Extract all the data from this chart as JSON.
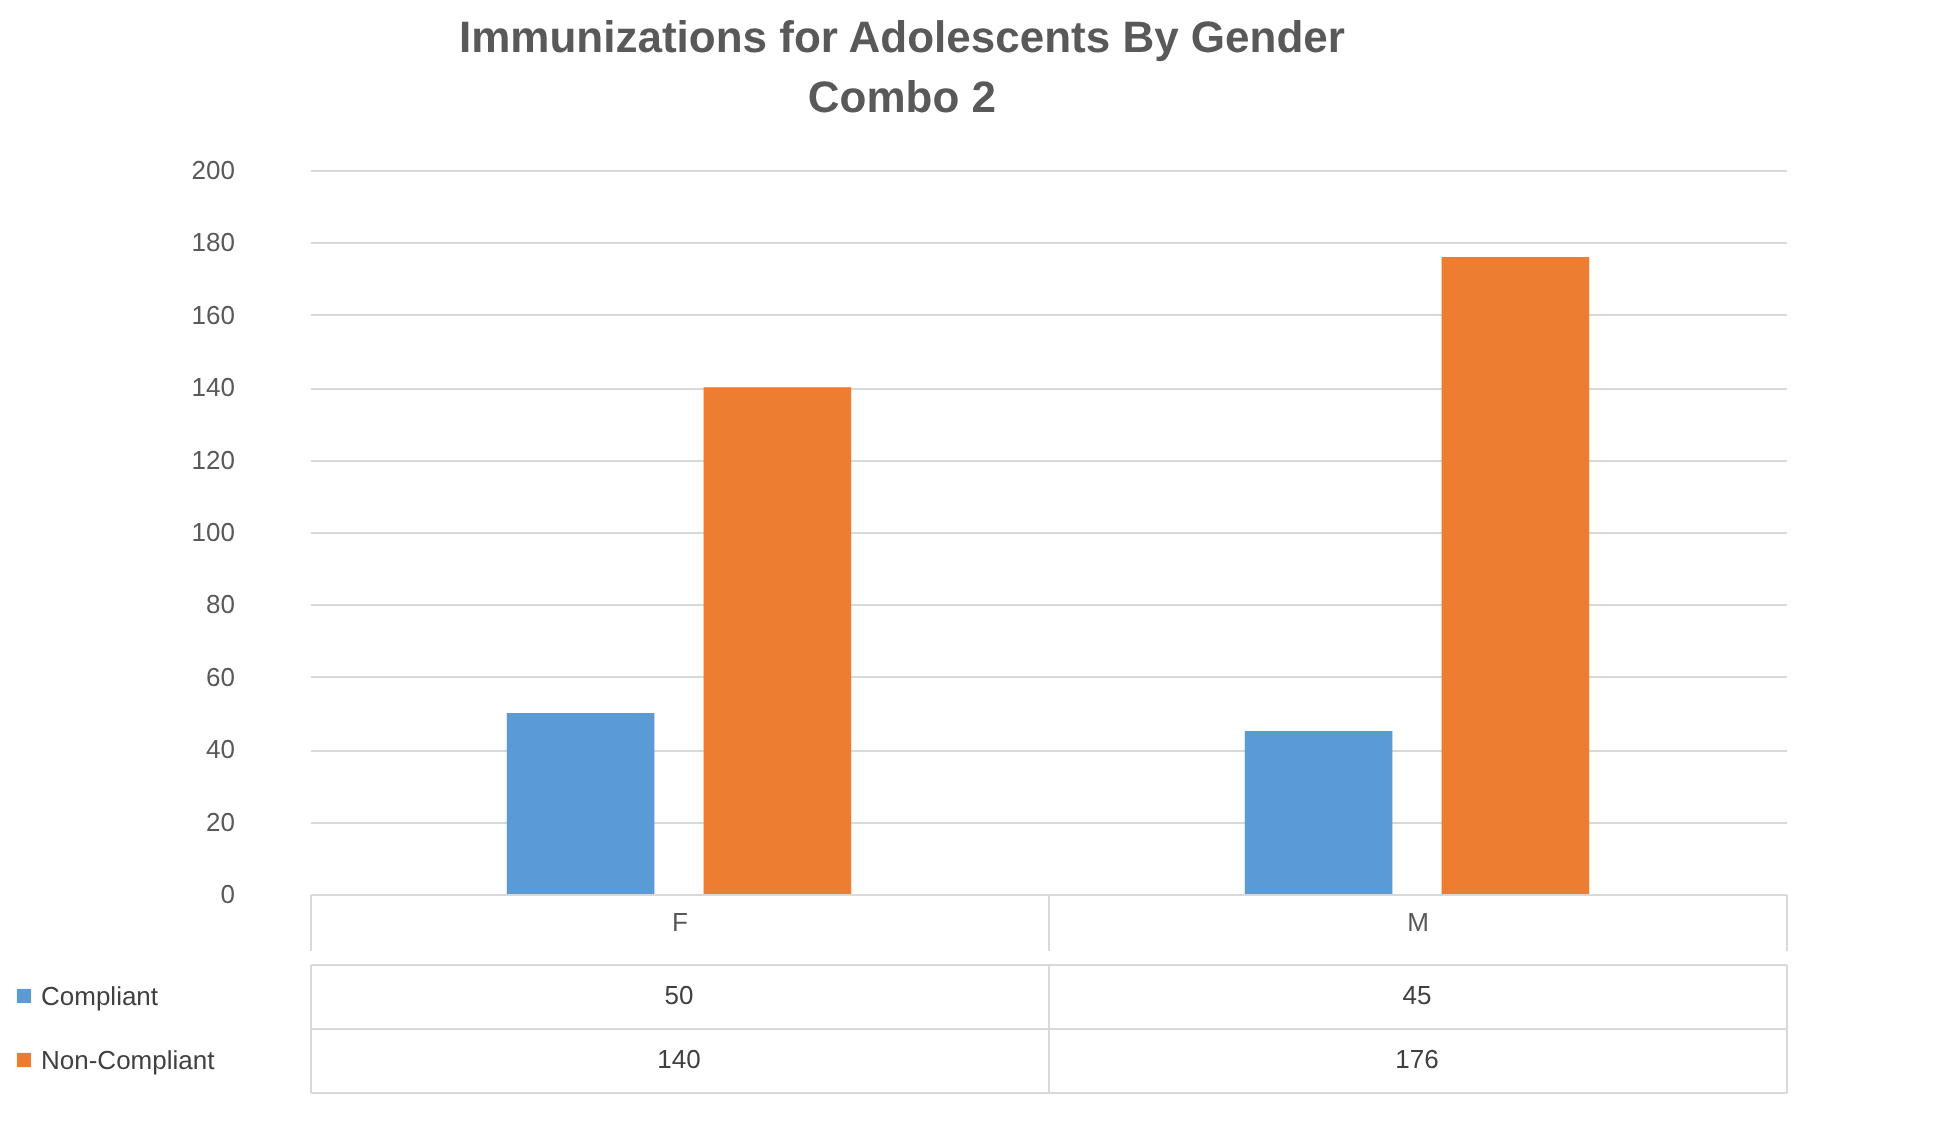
{
  "chart_data": {
    "type": "bar",
    "title": "Immunizations for Adolescents  By Gender",
    "subtitle": "Combo 2",
    "categories": [
      "F",
      "M"
    ],
    "series": [
      {
        "name": "Compliant",
        "color": "#5b9bd5",
        "values": [
          50,
          45
        ]
      },
      {
        "name": "Non-Compliant",
        "color": "#ed7d31",
        "values": [
          140,
          176
        ]
      }
    ],
    "ylim": [
      0,
      200
    ],
    "yticks": [
      0,
      20,
      40,
      60,
      80,
      100,
      120,
      140,
      160,
      180,
      200
    ],
    "grid": "y",
    "data_labels": true,
    "legend": "bottom"
  }
}
